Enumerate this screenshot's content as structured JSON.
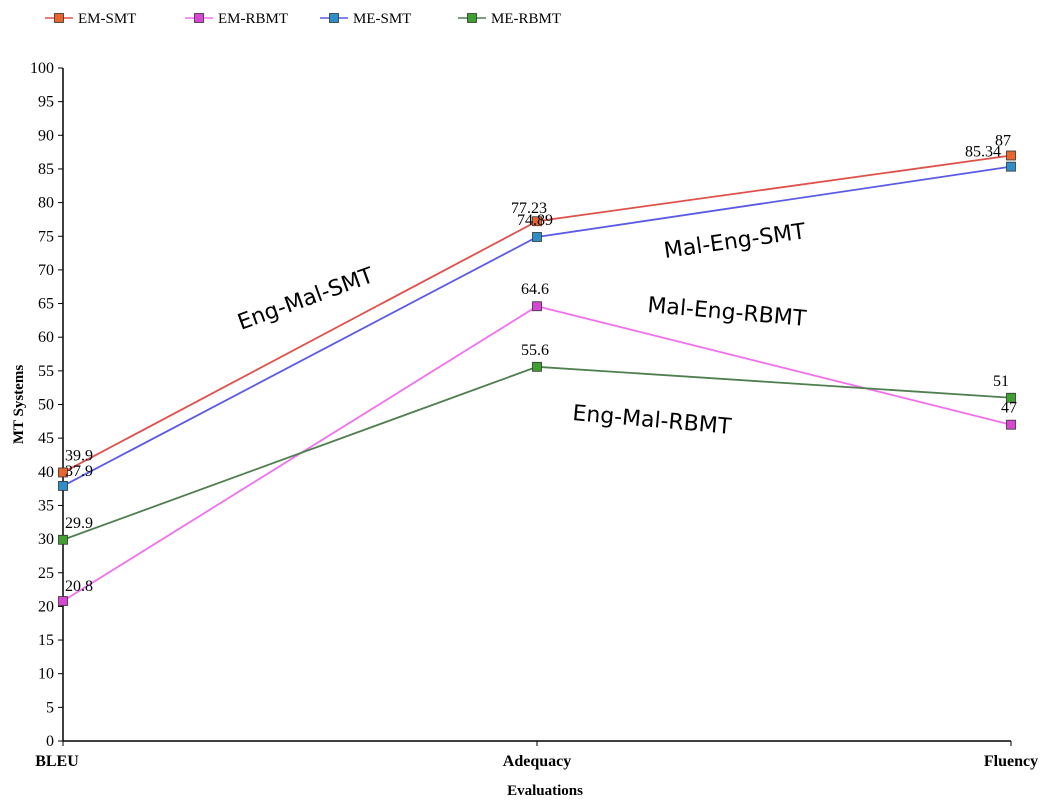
{
  "chart_data": {
    "type": "line",
    "categories": [
      "BLEU",
      "Adequacy",
      "Fluency"
    ],
    "xlabel": "Evaluations",
    "ylabel": "MT Systems",
    "ylim": [
      0,
      100
    ],
    "yticks": [
      0,
      5,
      10,
      15,
      20,
      25,
      30,
      35,
      40,
      45,
      50,
      55,
      60,
      65,
      70,
      75,
      80,
      85,
      90,
      95,
      100
    ],
    "legend_position": "top-left",
    "grid": false,
    "series": [
      {
        "name": "EM-SMT",
        "values": [
          39.9,
          77.23,
          87
        ],
        "line_color": "#e0504a",
        "marker_color": "#e8662c",
        "labels": [
          "39.9",
          "77.23",
          "87"
        ]
      },
      {
        "name": "EM-RBMT",
        "values": [
          20.8,
          64.6,
          47
        ],
        "line_color": "#f071f0",
        "marker_color": "#d946d6",
        "labels": [
          "20.8",
          "64.6",
          "47"
        ]
      },
      {
        "name": "ME-SMT",
        "values": [
          37.9,
          74.89,
          85.34
        ],
        "line_color": "#5a5ae6",
        "marker_color": "#2e8fc6",
        "labels": [
          "37.9",
          "74.89",
          "85.34"
        ]
      },
      {
        "name": "ME-RBMT",
        "values": [
          29.9,
          55.6,
          51
        ],
        "line_color": "#4f7f4f",
        "marker_color": "#3f9f2f",
        "labels": [
          "29.9",
          "55.6",
          "51"
        ]
      }
    ],
    "annotations": [
      {
        "text": "Eng-Mal-SMT",
        "near": "between BLEU and Adequacy, above the SMT lines"
      },
      {
        "text": "Mal-Eng-SMT",
        "near": "between Adequacy and Fluency, below the SMT lines"
      },
      {
        "text": "Mal-Eng-RBMT",
        "near": "between Adequacy and Fluency, above the upper RBMT line"
      },
      {
        "text": "Eng-Mal-RBMT",
        "near": "between Adequacy and Fluency, below the lower RBMT line"
      }
    ]
  }
}
